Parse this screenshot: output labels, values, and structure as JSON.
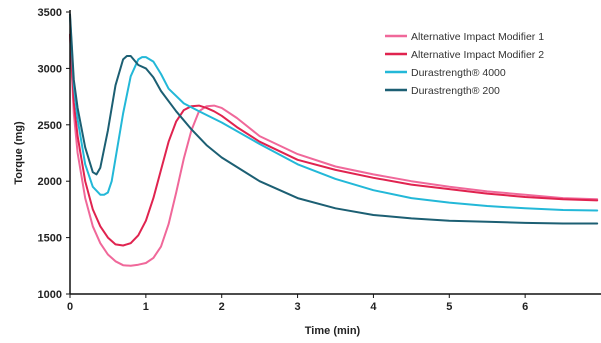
{
  "chart_data": {
    "type": "line",
    "xlabel": "Time (min)",
    "ylabel": "Torque (mg)",
    "xlim": [
      0,
      7
    ],
    "ylim": [
      1000,
      3500
    ],
    "xticks": [
      0,
      1,
      2,
      3,
      4,
      5,
      6
    ],
    "yticks": [
      1000,
      1500,
      2000,
      2500,
      3000,
      3500
    ],
    "grid": false,
    "legend_position": "top-right",
    "series": [
      {
        "name": "Alternative Impact Modifier 1",
        "color": "#f0689a",
        "x": [
          0,
          0.05,
          0.1,
          0.2,
          0.3,
          0.4,
          0.5,
          0.6,
          0.7,
          0.8,
          0.9,
          1.0,
          1.1,
          1.2,
          1.3,
          1.4,
          1.5,
          1.6,
          1.7,
          1.8,
          1.9,
          2.0,
          2.2,
          2.5,
          3.0,
          3.5,
          4.0,
          4.5,
          5.0,
          5.5,
          6.0,
          6.5,
          6.95
        ],
        "y": [
          3300,
          2600,
          2250,
          1850,
          1600,
          1450,
          1350,
          1290,
          1255,
          1250,
          1260,
          1275,
          1320,
          1420,
          1620,
          1900,
          2200,
          2450,
          2620,
          2665,
          2670,
          2650,
          2560,
          2400,
          2240,
          2130,
          2060,
          2000,
          1950,
          1910,
          1880,
          1850,
          1840
        ]
      },
      {
        "name": "Alternative Impact Modifier 2",
        "color": "#e0234f",
        "x": [
          0,
          0.05,
          0.1,
          0.2,
          0.3,
          0.4,
          0.5,
          0.6,
          0.7,
          0.8,
          0.9,
          1.0,
          1.1,
          1.2,
          1.3,
          1.4,
          1.5,
          1.6,
          1.7,
          1.8,
          1.9,
          2.0,
          2.2,
          2.5,
          3.0,
          3.5,
          4.0,
          4.5,
          5.0,
          5.5,
          6.0,
          6.5,
          6.95
        ],
        "y": [
          3300,
          2700,
          2400,
          2000,
          1750,
          1600,
          1500,
          1440,
          1430,
          1450,
          1520,
          1650,
          1850,
          2100,
          2350,
          2530,
          2630,
          2665,
          2670,
          2650,
          2620,
          2580,
          2480,
          2350,
          2190,
          2100,
          2030,
          1970,
          1930,
          1890,
          1860,
          1840,
          1830
        ]
      },
      {
        "name": "Durastrength® 4000",
        "color": "#23b8d8",
        "x": [
          0,
          0.05,
          0.1,
          0.2,
          0.3,
          0.4,
          0.45,
          0.5,
          0.55,
          0.6,
          0.7,
          0.8,
          0.9,
          0.95,
          1.0,
          1.1,
          1.2,
          1.3,
          1.5,
          1.7,
          2.0,
          2.5,
          3.0,
          3.5,
          4.0,
          4.5,
          5.0,
          5.5,
          6.0,
          6.5,
          6.95
        ],
        "y": [
          3450,
          2850,
          2550,
          2150,
          1950,
          1880,
          1880,
          1900,
          2000,
          2200,
          2600,
          2930,
          3080,
          3100,
          3100,
          3060,
          2950,
          2820,
          2690,
          2620,
          2520,
          2330,
          2150,
          2020,
          1920,
          1850,
          1810,
          1780,
          1760,
          1745,
          1740
        ]
      },
      {
        "name": "Durastrength® 200",
        "color": "#1c5f73",
        "x": [
          0,
          0.05,
          0.1,
          0.2,
          0.3,
          0.35,
          0.4,
          0.5,
          0.6,
          0.7,
          0.75,
          0.8,
          0.9,
          1.0,
          1.1,
          1.2,
          1.4,
          1.6,
          1.8,
          2.0,
          2.5,
          3.0,
          3.5,
          4.0,
          4.5,
          5.0,
          5.5,
          6.0,
          6.5,
          6.95
        ],
        "y": [
          3480,
          2900,
          2650,
          2300,
          2080,
          2060,
          2120,
          2450,
          2850,
          3080,
          3110,
          3110,
          3030,
          3000,
          2920,
          2800,
          2620,
          2460,
          2320,
          2210,
          2000,
          1850,
          1760,
          1700,
          1670,
          1650,
          1640,
          1630,
          1625,
          1625
        ]
      }
    ]
  }
}
